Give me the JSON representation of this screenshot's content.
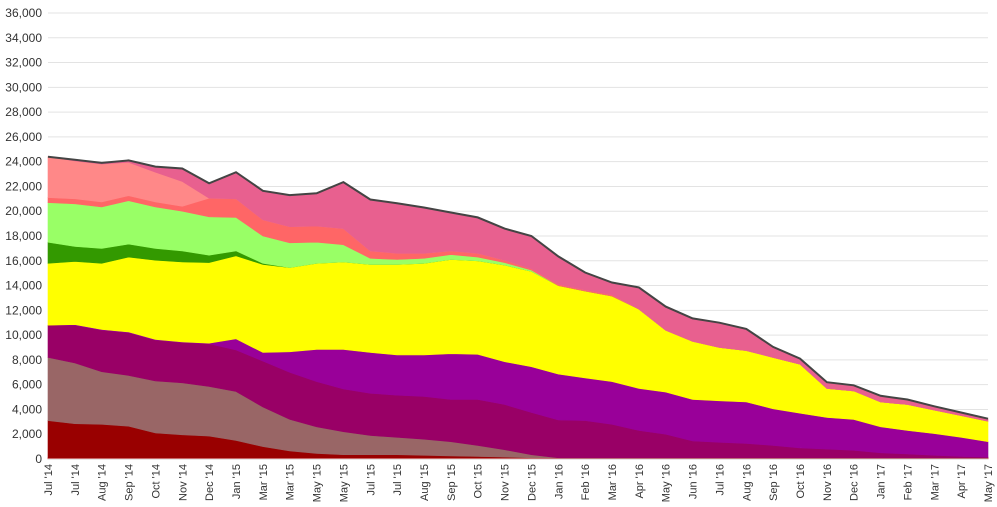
{
  "chart_data": {
    "type": "area",
    "stacked": true,
    "grid": true,
    "legend": "none",
    "ylim": [
      0,
      36000
    ],
    "yticks": [
      "0",
      "2,000",
      "4,000",
      "6,000",
      "8,000",
      "10,000",
      "12,000",
      "14,000",
      "16,000",
      "18,000",
      "20,000",
      "22,000",
      "24,000",
      "26,000",
      "28,000",
      "30,000",
      "32,000",
      "34,000",
      "36,000"
    ],
    "categories": [
      "Jul '14",
      "Jul '14",
      "Aug '14",
      "Sep '14",
      "Oct '14",
      "Nov '14",
      "Dec '14",
      "Jan '15",
      "Mar '15",
      "Mar '15",
      "May '15",
      "May '15",
      "Jul '15",
      "Jul '15",
      "Aug '15",
      "Sep '15",
      "Oct '15",
      "Nov '15",
      "Dec '15",
      "Jan '16",
      "Feb '16",
      "Mar '16",
      "Apr '16",
      "May '16",
      "Jun '16",
      "Jul '16",
      "Aug '16",
      "Sep '16",
      "Oct '16",
      "Nov '16",
      "Dec '16",
      "Jan '17",
      "Feb '17",
      "Mar '17",
      "Apr '17",
      "May '17"
    ],
    "series": [
      {
        "color": "#cc0000",
        "values": [
          100,
          100,
          100,
          100,
          100,
          100,
          100,
          100,
          100,
          100,
          100,
          100,
          100,
          100,
          100,
          100,
          100,
          100,
          100,
          100,
          100,
          100,
          100,
          100,
          100,
          100,
          100,
          100,
          100,
          100,
          100,
          100,
          100,
          100,
          100,
          100
        ]
      },
      {
        "color": "#990000",
        "values": [
          3000,
          2750,
          2700,
          2550,
          2000,
          1850,
          1750,
          1400,
          900,
          550,
          350,
          250,
          250,
          250,
          200,
          150,
          100,
          50,
          0,
          0,
          0,
          0,
          0,
          0,
          0,
          0,
          0,
          0,
          0,
          0,
          0,
          0,
          0,
          0,
          0,
          0
        ]
      },
      {
        "color": "#996666",
        "values": [
          5100,
          4900,
          4250,
          4100,
          4200,
          4200,
          4000,
          3950,
          3200,
          2550,
          2150,
          1850,
          1550,
          1400,
          1300,
          1150,
          900,
          600,
          250,
          0,
          0,
          0,
          0,
          0,
          0,
          0,
          0,
          0,
          0,
          0,
          0,
          0,
          0,
          0,
          0,
          0
        ]
      },
      {
        "color": "#990066",
        "values": [
          2600,
          3050,
          3350,
          3450,
          3300,
          3250,
          3450,
          3350,
          3700,
          3800,
          3650,
          3450,
          3400,
          3400,
          3450,
          3400,
          3700,
          3650,
          3400,
          3050,
          3000,
          2700,
          2200,
          1900,
          1350,
          1250,
          1150,
          1000,
          800,
          700,
          600,
          400,
          300,
          200,
          100,
          50
        ]
      },
      {
        "color": "#990099",
        "values": [
          0,
          50,
          50,
          50,
          50,
          50,
          50,
          900,
          700,
          1650,
          2600,
          3200,
          3300,
          3250,
          3350,
          3700,
          3650,
          3450,
          3700,
          3700,
          3450,
          3450,
          3400,
          3400,
          3350,
          3350,
          3350,
          2950,
          2800,
          2550,
          2500,
          2100,
          1900,
          1750,
          1550,
          1250
        ]
      },
      {
        "color": "#ffff00",
        "values": [
          5000,
          5100,
          5350,
          6050,
          6400,
          6450,
          6500,
          6700,
          7100,
          6800,
          6950,
          7050,
          7100,
          7300,
          7400,
          7600,
          7550,
          7800,
          7700,
          7150,
          7000,
          6900,
          6400,
          5000,
          4700,
          4300,
          4150,
          4150,
          3950,
          2350,
          2300,
          2000,
          2100,
          1900,
          1750,
          1650
        ]
      },
      {
        "color": "#339900",
        "values": [
          1700,
          1200,
          1200,
          1050,
          950,
          900,
          600,
          400,
          100,
          0,
          0,
          0,
          0,
          0,
          0,
          0,
          0,
          0,
          0,
          0,
          0,
          0,
          0,
          0,
          0,
          0,
          0,
          0,
          0,
          0,
          0,
          0,
          0,
          0,
          0,
          0
        ]
      },
      {
        "color": "#99ff66",
        "values": [
          3200,
          3450,
          3350,
          3500,
          3350,
          3200,
          3100,
          2700,
          2200,
          2000,
          1700,
          1400,
          500,
          400,
          400,
          400,
          300,
          200,
          100,
          0,
          0,
          0,
          0,
          0,
          0,
          0,
          0,
          0,
          0,
          0,
          0,
          0,
          0,
          0,
          0,
          0
        ]
      },
      {
        "color": "#ff6666",
        "values": [
          400,
          400,
          400,
          400,
          400,
          400,
          1500,
          1500,
          1300,
          1300,
          1300,
          1300,
          600,
          500,
          400,
          300,
          300,
          200,
          100,
          100,
          100,
          100,
          0,
          0,
          0,
          0,
          0,
          0,
          0,
          0,
          0,
          0,
          0,
          0,
          0,
          0
        ]
      },
      {
        "color": "#ff8888",
        "values": [
          3300,
          3050,
          3050,
          2700,
          2400,
          2000,
          0,
          0,
          0,
          0,
          0,
          0,
          0,
          0,
          0,
          0,
          0,
          0,
          0,
          0,
          0,
          0,
          0,
          0,
          0,
          0,
          0,
          0,
          0,
          0,
          0,
          0,
          0,
          0,
          0,
          0
        ]
      },
      {
        "color": "#e8608f",
        "values": [
          0,
          100,
          100,
          150,
          450,
          1050,
          1200,
          2150,
          2350,
          2550,
          2650,
          3750,
          4150,
          4050,
          3700,
          3100,
          2900,
          2550,
          2650,
          2250,
          1400,
          1000,
          1750,
          1900,
          1850,
          2000,
          1750,
          850,
          450,
          500,
          450,
          500,
          400,
          300,
          250,
          200
        ]
      }
    ],
    "total_line_color": "#444444"
  }
}
